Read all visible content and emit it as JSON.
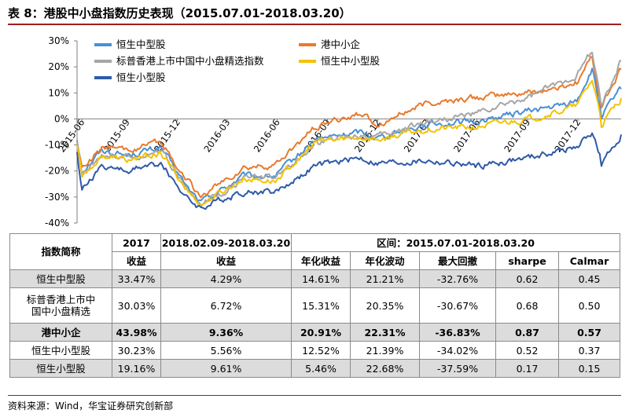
{
  "title": "表 8：港股中小盘指数历史表现（2015.07.01-2018.03.20）",
  "chart_data": {
    "type": "line",
    "ylim": [
      -0.4,
      0.3
    ],
    "yticks": [
      "30%",
      "20%",
      "10%",
      "0%",
      "-10%",
      "-20%",
      "-30%",
      "-40%"
    ],
    "xticks": [
      "2015-06",
      "2015-09",
      "2015-12",
      "2016-03",
      "2016-06",
      "2016-09",
      "2016-12",
      "2017-03",
      "2017-06",
      "2017-09",
      "2017-12"
    ],
    "x_start": "2015-07-01",
    "x_end": "2018-03-20",
    "keypoints_x": [
      "2015-07-01",
      "2015-07-10",
      "2015-08-15",
      "2015-09-30",
      "2015-12-01",
      "2016-01-20",
      "2016-02-12",
      "2016-04-30",
      "2016-06-27",
      "2016-09-08",
      "2016-11-30",
      "2016-12-30",
      "2017-03-31",
      "2017-06-30",
      "2017-09-29",
      "2017-11-30",
      "2017-12-29",
      "2018-01-26",
      "2018-02-09",
      "2018-02-12",
      "2018-03-20"
    ],
    "series": [
      {
        "name": "恒生中型股",
        "color": "#4a8fd6",
        "width": 2,
        "values": [
          -0.08,
          -0.2,
          -0.12,
          -0.14,
          -0.11,
          -0.27,
          -0.32,
          -0.22,
          -0.22,
          -0.08,
          -0.05,
          -0.07,
          -0.02,
          -0.01,
          0.03,
          0.05,
          0.07,
          0.19,
          0.05,
          0.01,
          0.115
        ]
      },
      {
        "name": "港中小企",
        "color": "#e97a2b",
        "width": 2,
        "values": [
          -0.08,
          -0.19,
          -0.11,
          -0.12,
          -0.09,
          -0.24,
          -0.3,
          -0.19,
          -0.18,
          -0.03,
          0.02,
          -0.02,
          0.06,
          0.08,
          0.1,
          0.12,
          0.14,
          0.24,
          0.09,
          0.05,
          0.19
        ]
      },
      {
        "name": "标普香港上市中国中小盘精选指数",
        "color": "#a6a6a6",
        "width": 2,
        "values": [
          -0.09,
          -0.21,
          -0.13,
          -0.15,
          -0.12,
          -0.28,
          -0.33,
          -0.23,
          -0.23,
          -0.09,
          -0.06,
          -0.07,
          -0.01,
          0.02,
          0.08,
          0.14,
          0.17,
          0.26,
          0.09,
          0.05,
          0.225
        ]
      },
      {
        "name": "恒生中小型股",
        "color": "#f5c200",
        "width": 2,
        "values": [
          -0.1,
          -0.22,
          -0.14,
          -0.16,
          -0.13,
          -0.28,
          -0.33,
          -0.23,
          -0.24,
          -0.09,
          -0.07,
          -0.08,
          -0.04,
          -0.03,
          0.0,
          0.03,
          0.05,
          0.15,
          0.03,
          -0.02,
          0.08
        ]
      },
      {
        "name": "恒生小型股",
        "color": "#2f5aa8",
        "width": 2,
        "values": [
          -0.12,
          -0.27,
          -0.18,
          -0.2,
          -0.17,
          -0.31,
          -0.34,
          -0.28,
          -0.28,
          -0.18,
          -0.15,
          -0.17,
          -0.16,
          -0.18,
          -0.15,
          -0.12,
          -0.11,
          -0.05,
          -0.14,
          -0.18,
          -0.06
        ]
      }
    ]
  },
  "table": {
    "header1": [
      "指数简称",
      "2017",
      "2018.02.09-2018.03.20",
      "区间：2015.07.01-2018.03.20"
    ],
    "header2": [
      "收益",
      "收益",
      "年化收益",
      "年化波动",
      "最大回撤",
      "sharpe",
      "Calmar"
    ],
    "rows": [
      {
        "name": "恒生中型股",
        "cells": [
          "33.47%",
          "4.29%",
          "14.61%",
          "21.21%",
          "-32.76%",
          "0.62",
          "0.45"
        ]
      },
      {
        "name_line1": "标普香港上市中",
        "name_line2": "国中小盘精选",
        "cells": [
          "30.03%",
          "6.72%",
          "15.31%",
          "20.35%",
          "-30.67%",
          "0.68",
          "0.50"
        ]
      },
      {
        "name": "港中小企",
        "cells": [
          "43.98%",
          "9.36%",
          "20.91%",
          "22.31%",
          "-36.83%",
          "0.87",
          "0.57"
        ]
      },
      {
        "name": "恒生中小型股",
        "cells": [
          "30.23%",
          "5.56%",
          "12.52%",
          "21.39%",
          "-34.02%",
          "0.52",
          "0.37"
        ]
      },
      {
        "name": "恒生小型股",
        "cells": [
          "19.16%",
          "9.61%",
          "5.46%",
          "22.68%",
          "-37.59%",
          "0.17",
          "0.15"
        ]
      }
    ]
  },
  "source": "资料来源：Wind，华宝证券研究创新部"
}
